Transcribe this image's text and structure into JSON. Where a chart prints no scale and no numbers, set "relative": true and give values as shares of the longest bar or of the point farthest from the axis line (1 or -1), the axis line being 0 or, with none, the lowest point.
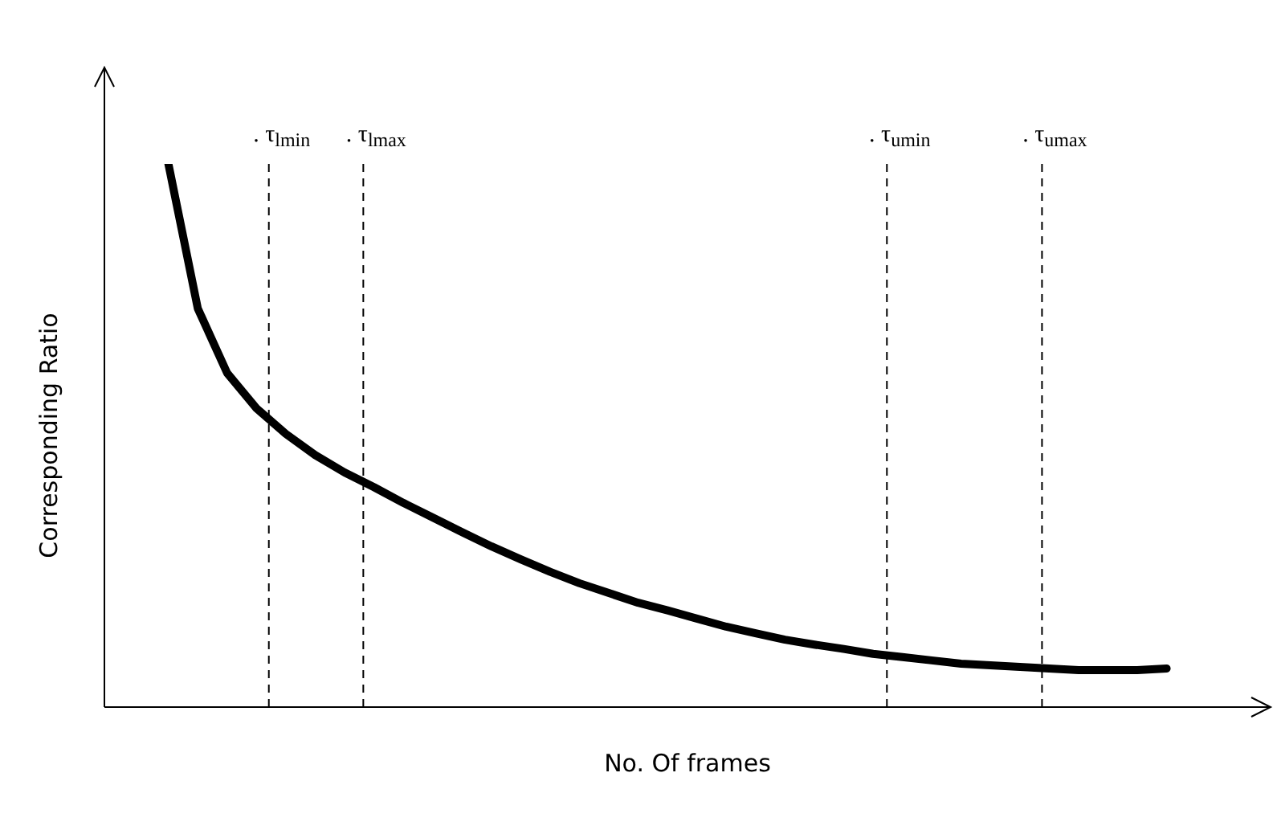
{
  "chart_data": {
    "type": "line",
    "relative": true,
    "xlabel": "No. Of frames",
    "ylabel": "Corresponding Ratio",
    "marker": "none",
    "line_style": "solid",
    "categories": [
      null,
      null,
      null,
      null,
      null,
      null,
      null,
      null,
      null,
      null,
      null,
      null,
      null,
      null,
      null,
      null,
      null,
      null,
      null,
      null,
      null,
      null,
      null,
      null,
      null,
      null,
      null,
      null,
      null,
      null,
      null,
      null,
      null,
      null,
      null
    ],
    "series": [
      {
        "color": "#000000",
        "values": [
          1,
          0.734,
          0.615,
          0.55,
          0.503,
          0.464,
          0.432,
          0.405,
          0.376,
          0.349,
          0.322,
          0.296,
          0.272,
          0.249,
          0.228,
          0.21,
          0.192,
          0.178,
          0.163,
          0.148,
          0.136,
          0.124,
          0.115,
          0.107,
          0.098,
          0.092,
          0.086,
          0.08,
          0.077,
          0.074,
          0.071,
          0.068,
          0.068,
          0.068,
          0.071
        ]
      }
    ],
    "annotations": [
      ". τ$_{lmin}$",
      ". τ$_{lmax}$",
      ". τ$_{umin}$",
      ". τ$_{umax}$"
    ]
  }
}
